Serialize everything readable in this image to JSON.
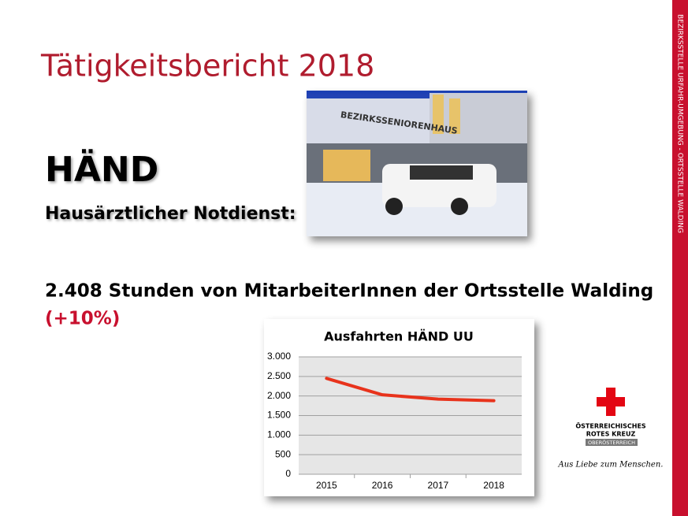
{
  "header": {
    "title": "Tätigkeitsbericht 2018"
  },
  "section": {
    "heading": "HÄND",
    "subheading": "Hausärztlicher Notdienst:"
  },
  "body": {
    "text": "2.408 Stunden von MitarbeiterInnen der Ortsstelle Walding",
    "change": "(+10%)"
  },
  "photo": {
    "sign": "BEZIRKSSENIORENHAUS"
  },
  "sidebar": {
    "text": "BEZIRKSSTELLE URFAHR-UMGEBUNG - ORTSSTELLE WALDING"
  },
  "logo": {
    "line1": "ÖSTERREICHISCHES",
    "line2": "ROTES KREUZ",
    "line3": "OBERÖSTERREICH",
    "slogan": "Aus Liebe zum Menschen."
  },
  "chart_data": {
    "type": "line",
    "title": "Ausfahrten HÄND UU",
    "categories": [
      "2015",
      "2016",
      "2017",
      "2018"
    ],
    "values": [
      2450,
      2030,
      1920,
      1880
    ],
    "color": "#e8331c",
    "ylim": [
      0,
      3000
    ],
    "yticks": [
      0,
      500,
      {
        "value": 1000,
        "label": "1.000"
      },
      {
        "value": 1500,
        "label": "1.500"
      },
      {
        "value": 2000,
        "label": "2.000"
      },
      {
        "value": 2500,
        "label": "2.500"
      },
      {
        "value": 3000,
        "label": "3.000"
      }
    ],
    "grid": true
  }
}
